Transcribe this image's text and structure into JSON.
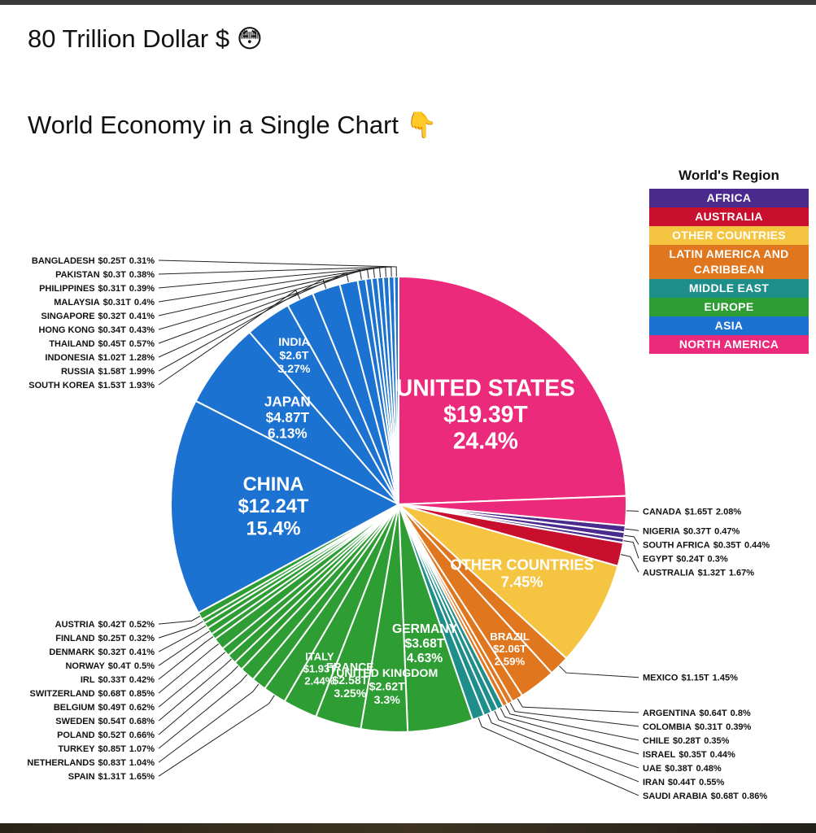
{
  "header": {
    "title": "80 Trillion Dollar $ 😳",
    "subtitle": "World Economy in a Single Chart 👇"
  },
  "chart_data": {
    "type": "voronoi",
    "legend_title": "World's Region",
    "regions": [
      {
        "name": "AFRICA",
        "color": "#4b2a8e",
        "items": [
          {
            "label": "NIGERIA",
            "value": 0.37,
            "value_label": "$0.37T",
            "share": 0.47,
            "share_label": "0.47%"
          },
          {
            "label": "SOUTH AFRICA",
            "value": 0.35,
            "value_label": "$0.35T",
            "share": 0.44,
            "share_label": "0.44%"
          },
          {
            "label": "EGYPT",
            "value": 0.24,
            "value_label": "$0.24T",
            "share": 0.3,
            "share_label": "0.3%"
          }
        ]
      },
      {
        "name": "AUSTRALIA",
        "color": "#c8102e",
        "items": [
          {
            "label": "AUSTRALIA",
            "value": 1.32,
            "value_label": "$1.32T",
            "share": 1.67,
            "share_label": "1.67%"
          }
        ]
      },
      {
        "name": "OTHER COUNTRIES",
        "color": "#f5c542",
        "items": [
          {
            "label": "OTHER COUNTRIES",
            "share": 7.45,
            "share_label": "7.45%"
          }
        ]
      },
      {
        "name": "LATIN AMERICA AND CARIBBEAN",
        "color": "#e0761e",
        "items": [
          {
            "label": "MEXICO",
            "value": 1.15,
            "value_label": "$1.15T",
            "share": 1.45,
            "share_label": "1.45%"
          },
          {
            "label": "BRAZIL",
            "value": 2.06,
            "value_label": "$2.06T",
            "share": 2.59,
            "share_label": "2.59%"
          },
          {
            "label": "ARGENTINA",
            "value": 0.64,
            "value_label": "$0.64T",
            "share": 0.8,
            "share_label": "0.8%"
          },
          {
            "label": "COLOMBIA",
            "value": 0.31,
            "value_label": "$0.31T",
            "share": 0.39,
            "share_label": "0.39%"
          },
          {
            "label": "CHILE",
            "value": 0.28,
            "value_label": "$0.28T",
            "share": 0.35,
            "share_label": "0.35%"
          }
        ]
      },
      {
        "name": "MIDDLE EAST",
        "color": "#1e8e8a",
        "items": [
          {
            "label": "ISRAEL",
            "value": 0.35,
            "value_label": "$0.35T",
            "share": 0.44,
            "share_label": "0.44%"
          },
          {
            "label": "UAE",
            "value": 0.38,
            "value_label": "$0.38T",
            "share": 0.48,
            "share_label": "0.48%"
          },
          {
            "label": "IRAN",
            "value": 0.44,
            "value_label": "$0.44T",
            "share": 0.55,
            "share_label": "0.55%"
          },
          {
            "label": "SAUDI ARABIA",
            "value": 0.68,
            "value_label": "$0.68T",
            "share": 0.86,
            "share_label": "0.86%"
          }
        ]
      },
      {
        "name": "EUROPE",
        "color": "#2e9e34",
        "items": [
          {
            "label": "GERMANY",
            "value": 3.68,
            "value_label": "$3.68T",
            "share": 4.63,
            "share_label": "4.63%"
          },
          {
            "label": "UNITED KINGDOM",
            "value": 2.62,
            "value_label": "$2.62T",
            "share": 3.3,
            "share_label": "3.3%"
          },
          {
            "label": "FRANCE",
            "value": 2.58,
            "value_label": "$2.58T",
            "share": 3.25,
            "share_label": "3.25%"
          },
          {
            "label": "ITALY",
            "value": 1.93,
            "value_label": "$1.93T",
            "share": 2.44,
            "share_label": "2.44%"
          },
          {
            "label": "SPAIN",
            "value": 1.31,
            "value_label": "$1.31T",
            "share": 1.65,
            "share_label": "1.65%"
          },
          {
            "label": "NETHERLANDS",
            "value": 0.83,
            "value_label": "$0.83T",
            "share": 1.04,
            "share_label": "1.04%"
          },
          {
            "label": "TURKEY",
            "value": 0.85,
            "value_label": "$0.85T",
            "share": 1.07,
            "share_label": "1.07%"
          },
          {
            "label": "POLAND",
            "value": 0.52,
            "value_label": "$0.52T",
            "share": 0.66,
            "share_label": "0.66%"
          },
          {
            "label": "SWEDEN",
            "value": 0.54,
            "value_label": "$0.54T",
            "share": 0.68,
            "share_label": "0.68%"
          },
          {
            "label": "BELGIUM",
            "value": 0.49,
            "value_label": "$0.49T",
            "share": 0.62,
            "share_label": "0.62%"
          },
          {
            "label": "SWITZERLAND",
            "value": 0.68,
            "value_label": "$0.68T",
            "share": 0.85,
            "share_label": "0.85%"
          },
          {
            "label": "IRL",
            "value": 0.33,
            "value_label": "$0.33T",
            "share": 0.42,
            "share_label": "0.42%"
          },
          {
            "label": "NORWAY",
            "value": 0.4,
            "value_label": "$0.4T",
            "share": 0.5,
            "share_label": "0.5%"
          },
          {
            "label": "DENMARK",
            "value": 0.32,
            "value_label": "$0.32T",
            "share": 0.41,
            "share_label": "0.41%"
          },
          {
            "label": "FINLAND",
            "value": 0.25,
            "value_label": "$0.25T",
            "share": 0.32,
            "share_label": "0.32%"
          },
          {
            "label": "AUSTRIA",
            "value": 0.42,
            "value_label": "$0.42T",
            "share": 0.52,
            "share_label": "0.52%"
          }
        ]
      },
      {
        "name": "ASIA",
        "color": "#1b72d1",
        "items": [
          {
            "label": "CHINA",
            "value": 12.24,
            "value_label": "$12.24T",
            "share": 15.4,
            "share_label": "15.4%"
          },
          {
            "label": "JAPAN",
            "value": 4.87,
            "value_label": "$4.87T",
            "share": 6.13,
            "share_label": "6.13%"
          },
          {
            "label": "INDIA",
            "value": 2.6,
            "value_label": "$2.6T",
            "share": 3.27,
            "share_label": "3.27%"
          },
          {
            "label": "SOUTH KOREA",
            "value": 1.53,
            "value_label": "$1.53T",
            "share": 1.93,
            "share_label": "1.93%"
          },
          {
            "label": "RUSSIA",
            "value": 1.58,
            "value_label": "$1.58T",
            "share": 1.99,
            "share_label": "1.99%"
          },
          {
            "label": "INDONESIA",
            "value": 1.02,
            "value_label": "$1.02T",
            "share": 1.28,
            "share_label": "1.28%"
          },
          {
            "label": "THAILAND",
            "value": 0.45,
            "value_label": "$0.45T",
            "share": 0.57,
            "share_label": "0.57%"
          },
          {
            "label": "HONG KONG",
            "value": 0.34,
            "value_label": "$0.34T",
            "share": 0.43,
            "share_label": "0.43%"
          },
          {
            "label": "SINGAPORE",
            "value": 0.32,
            "value_label": "$0.32T",
            "share": 0.41,
            "share_label": "0.41%"
          },
          {
            "label": "MALAYSIA",
            "value": 0.31,
            "value_label": "$0.31T",
            "share": 0.4,
            "share_label": "0.4%"
          },
          {
            "label": "PHILIPPINES",
            "value": 0.31,
            "value_label": "$0.31T",
            "share": 0.39,
            "share_label": "0.39%"
          },
          {
            "label": "PAKISTAN",
            "value": 0.3,
            "value_label": "$0.3T",
            "share": 0.38,
            "share_label": "0.38%"
          },
          {
            "label": "BANGLADESH",
            "value": 0.25,
            "value_label": "$0.25T",
            "share": 0.31,
            "share_label": "0.31%"
          }
        ]
      },
      {
        "name": "NORTH AMERICA",
        "color": "#ec2a7c",
        "items": [
          {
            "label": "UNITED STATES",
            "value": 19.39,
            "value_label": "$19.39T",
            "share": 24.4,
            "share_label": "24.4%"
          },
          {
            "label": "CANADA",
            "value": 1.65,
            "value_label": "$1.65T",
            "share": 2.08,
            "share_label": "2.08%"
          }
        ]
      }
    ]
  }
}
